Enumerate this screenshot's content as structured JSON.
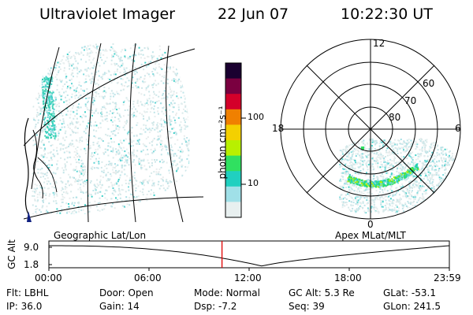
{
  "header": {
    "instrument": "Ultraviolet Imager",
    "date": "22 Jun 07",
    "time": "10:22:30 UT"
  },
  "colorbar": {
    "label": "photon cm⁻²s⁻¹",
    "ticks": [
      "100",
      "10"
    ],
    "colors": [
      "#1a0030",
      "#7a0040",
      "#d4002a",
      "#f08000",
      "#f4d000",
      "#b8f000",
      "#30e060",
      "#20d0c0",
      "#a0e0e8",
      "#e8f0f0"
    ]
  },
  "left_panel": {
    "label": "Geographic Lat/Lon"
  },
  "right_panel": {
    "label": "Apex MLat/MLT",
    "mlt_labels": {
      "top": "12",
      "bottom": "0",
      "left": "18",
      "right": "6"
    },
    "lat_labels": [
      "60",
      "70",
      "80"
    ]
  },
  "timeline": {
    "ylabel": "GC Alt",
    "yticks": [
      "9.0",
      "1.8"
    ],
    "xticks": [
      "00:00",
      "06:00",
      "12:00",
      "18:00",
      "23:59"
    ],
    "current_time_hours": 10.375,
    "marker_color": "#e00000"
  },
  "status": {
    "row1": [
      {
        "key": "Flt:",
        "value": "LBHL"
      },
      {
        "key": "Door:",
        "value": "Open"
      },
      {
        "key": "Mode:",
        "value": "Normal"
      },
      {
        "key": "GC Alt:",
        "value": "5.3 Re"
      },
      {
        "key": "GLat:",
        "value": "-53.1"
      }
    ],
    "row2": [
      {
        "key": "IP:",
        "value": "36.0"
      },
      {
        "key": "Gain:",
        "value": "14"
      },
      {
        "key": "Dsp:",
        "value": "-7.2"
      },
      {
        "key": "Seq:",
        "value": "39"
      },
      {
        "key": "GLon:",
        "value": "241.5"
      }
    ]
  }
}
